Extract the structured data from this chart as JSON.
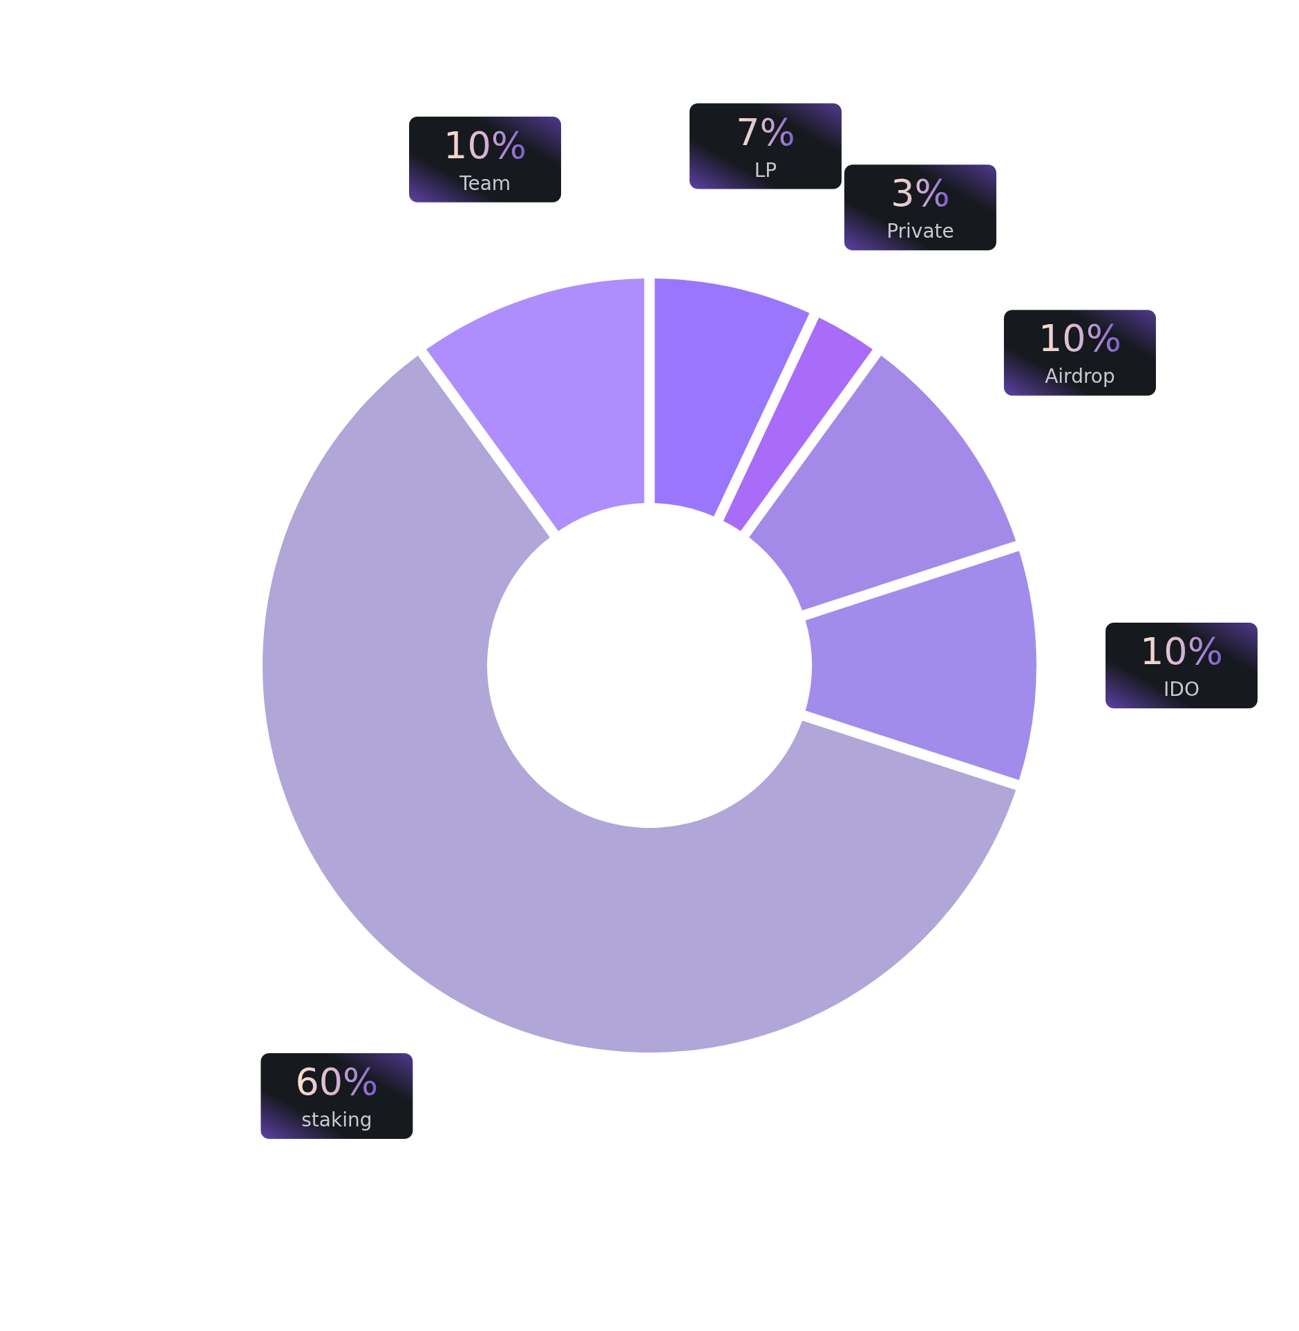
{
  "chart_data": {
    "type": "donut",
    "categories": [
      "LP",
      "Private",
      "Airdrop",
      "IDO",
      "staking",
      "Team"
    ],
    "values": [
      7,
      3,
      10,
      10,
      60,
      10
    ],
    "colors": [
      "#9a76fc",
      "#a96cf8",
      "#a48ae8",
      "#a18ceb",
      "#b1a6d8",
      "#ae8efc"
    ],
    "value_labels": [
      "7%",
      "3%",
      "10%",
      "10%",
      "60%",
      "10%"
    ]
  }
}
